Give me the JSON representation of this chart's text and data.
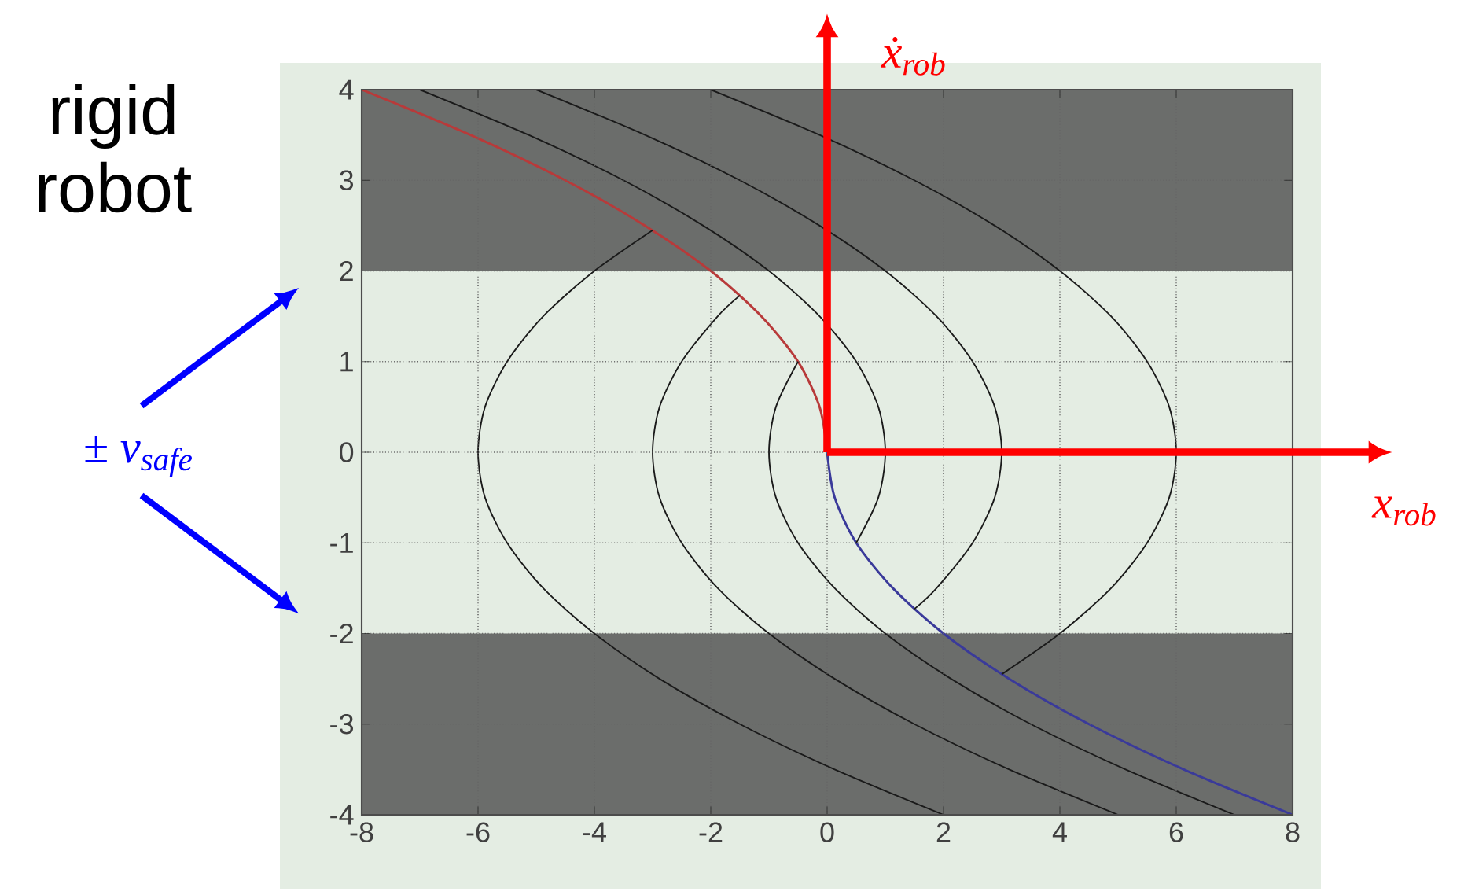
{
  "chart_data": {
    "type": "line",
    "title": "rigid robot",
    "annotations": [
      "x$_{rob}$",
      "ẋ$_{rob}$",
      "± v$_{safe}$"
    ],
    "xlim": [
      -8,
      8
    ],
    "ylim": [
      -4,
      4
    ],
    "xticks": [
      -8,
      -6,
      -4,
      -2,
      0,
      2,
      4,
      6,
      8
    ],
    "yticks": [
      -4,
      -3,
      -2,
      -1,
      0,
      1,
      2,
      3,
      4
    ],
    "grid": true,
    "marker": "none",
    "line_style": "solid",
    "bands": [
      {
        "axis": "y",
        "from": 2,
        "to": 4,
        "color": "#6b6d6b"
      },
      {
        "axis": "y",
        "from": -4,
        "to": -2,
        "color": "#6b6d6b"
      }
    ],
    "series": [
      {
        "color": "#b83a3a",
        "x": [
          -8,
          -6.13,
          -4.5,
          -3.13,
          -2,
          -1.13,
          -0.5,
          -0.13,
          0
        ],
        "values": [
          4,
          3.5,
          3,
          2.5,
          2,
          1.5,
          1,
          0.5,
          0
        ]
      },
      {
        "color": "#3a3a9a",
        "x": [
          0,
          0.13,
          0.5,
          1.13,
          2,
          3.13,
          4.5,
          6.13,
          8
        ],
        "values": [
          0,
          -0.5,
          -1,
          -1.5,
          -2,
          -2.5,
          -3,
          -3.5,
          -4
        ]
      },
      {
        "color": "#1a1a1a",
        "x": [
          -7,
          -5.13,
          -3.5,
          -2.13,
          -1,
          -0.13,
          0.5,
          0.88,
          1,
          0.88,
          0.5
        ],
        "values": [
          4,
          3.5,
          3,
          2.5,
          2,
          1.5,
          1,
          0.5,
          0,
          -0.5,
          -1
        ]
      },
      {
        "color": "#1a1a1a",
        "x": [
          -5,
          -3.13,
          -1.5,
          -0.13,
          1,
          1.88,
          2.5,
          2.88,
          3,
          2.88,
          2.5,
          1.88,
          1.5
        ],
        "values": [
          4,
          3.5,
          3,
          2.5,
          2,
          1.5,
          1,
          0.5,
          0,
          -0.5,
          -1,
          -1.5,
          -1.73
        ]
      },
      {
        "color": "#1a1a1a",
        "x": [
          -2,
          -0.13,
          1.5,
          2.88,
          4,
          4.88,
          5.5,
          5.88,
          6,
          5.88,
          5.5,
          4.88,
          4,
          3
        ],
        "values": [
          4,
          3.5,
          3,
          2.5,
          2,
          1.5,
          1,
          0.5,
          0,
          -0.5,
          -1,
          -1.5,
          -2,
          -2.45
        ]
      },
      {
        "color": "#1a1a1a",
        "x": [
          2,
          0.13,
          -1.5,
          -2.88,
          -4,
          -4.88,
          -5.5,
          -5.88,
          -6,
          -5.88,
          -5.5,
          -4.88,
          -4,
          -3
        ],
        "values": [
          -4,
          -3.5,
          -3,
          -2.5,
          -2,
          -1.5,
          -1,
          -0.5,
          0,
          0.5,
          1,
          1.5,
          2,
          2.45
        ]
      },
      {
        "color": "#1a1a1a",
        "x": [
          5,
          3.13,
          1.5,
          0.13,
          -1,
          -1.88,
          -2.5,
          -2.88,
          -3,
          -2.88,
          -2.5,
          -1.88,
          -1.5
        ],
        "values": [
          -4,
          -3.5,
          -3,
          -2.5,
          -2,
          -1.5,
          -1,
          -0.5,
          0,
          0.5,
          1,
          1.5,
          1.73
        ]
      },
      {
        "color": "#1a1a1a",
        "x": [
          7,
          5.13,
          3.5,
          2.13,
          1,
          0.13,
          -0.5,
          -0.88,
          -1,
          -0.88,
          -0.5
        ],
        "values": [
          -4,
          -3.5,
          -3,
          -2.5,
          -2,
          -1.5,
          -1,
          -0.5,
          0,
          0.5,
          1
        ]
      }
    ]
  }
}
